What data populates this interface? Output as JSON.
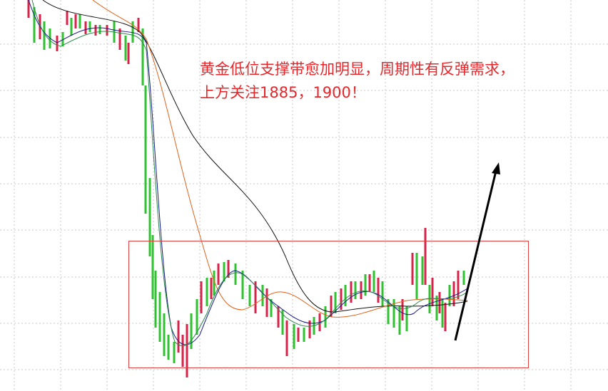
{
  "annotation": [
    "黄金低位支撑带愈加明显，周期性有反弹需求，",
    "上方关注1885，1900！"
  ]
}
